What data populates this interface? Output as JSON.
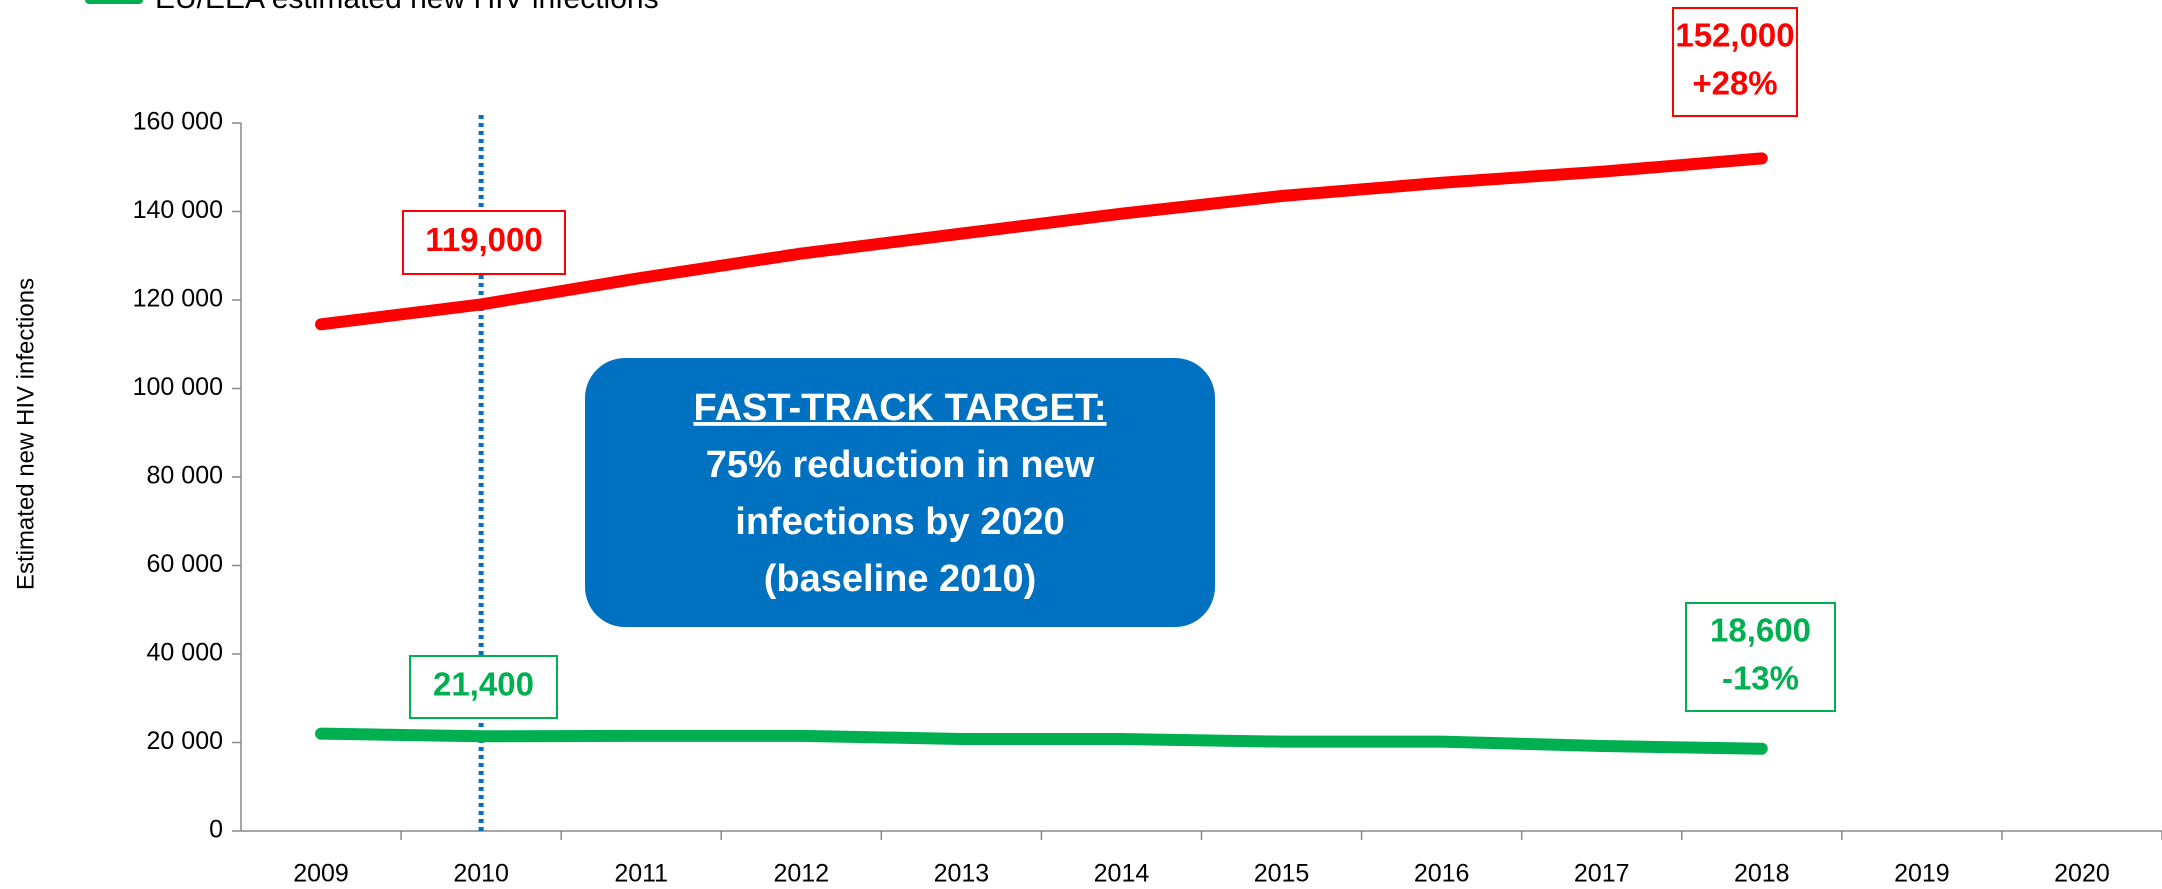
{
  "chart_data": {
    "type": "line",
    "legend_text": "EU/EEA estimated new HIV infections",
    "ylabel": "Estimated new HIV infections",
    "categories": [
      "2009",
      "2010",
      "2011",
      "2012",
      "2013",
      "2014",
      "2015",
      "2016",
      "2017",
      "2018",
      "2019",
      "2020"
    ],
    "series": [
      {
        "color": "#ff0000",
        "values": [
          114500,
          119000,
          125000,
          130500,
          135000,
          139500,
          143500,
          146500,
          149000,
          152000,
          null,
          null
        ]
      },
      {
        "name": "EU/EEA estimated new HIV infections",
        "color": "#00b050",
        "values": [
          22000,
          21400,
          21500,
          21500,
          20800,
          20800,
          20200,
          20200,
          19200,
          18600,
          null,
          null
        ]
      }
    ],
    "ylim": [
      0,
      160000
    ],
    "yticks": [
      {
        "value": 0,
        "label": "0"
      },
      {
        "value": 20000,
        "label": "20 000"
      },
      {
        "value": 40000,
        "label": "40 000"
      },
      {
        "value": 60000,
        "label": "60 000"
      },
      {
        "value": 80000,
        "label": "80 000"
      },
      {
        "value": 100000,
        "label": "100 000"
      },
      {
        "value": 120000,
        "label": "120 000"
      },
      {
        "value": 140000,
        "label": "140 000"
      },
      {
        "value": 160000,
        "label": "160 000"
      }
    ],
    "reference_line": {
      "x": "2010",
      "color": "#0070c0"
    },
    "annotations": [
      {
        "lines": [
          "119,000"
        ],
        "color": "#ff0000"
      },
      {
        "lines": [
          "152,000",
          "+28%"
        ],
        "color": "#ff0000"
      },
      {
        "lines": [
          "21,400"
        ],
        "color": "#00b050"
      },
      {
        "lines": [
          "18,600",
          "-13%"
        ],
        "color": "#00b050"
      }
    ],
    "callout": {
      "heading": "FAST-TRACK TARGET:",
      "lines": [
        "75% reduction in new",
        "infections by 2020",
        "(baseline 2010)"
      ],
      "color": "#0070c0"
    }
  }
}
